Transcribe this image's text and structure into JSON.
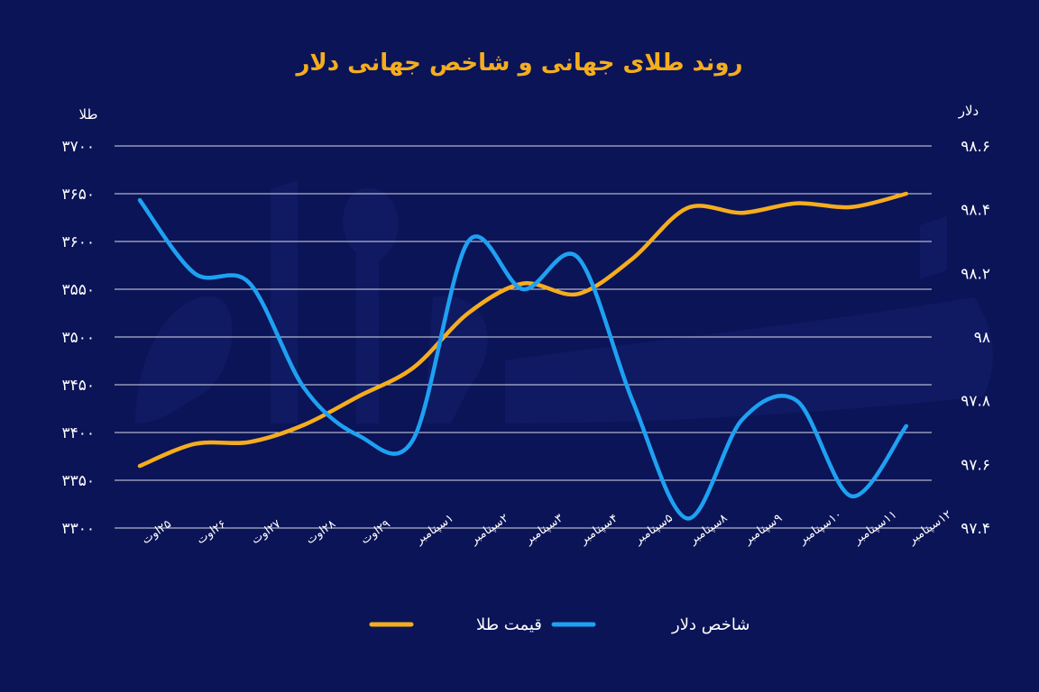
{
  "colors": {
    "background": "#0b1457",
    "gold": "#f5ad1e",
    "dollar": "#1ea1f2",
    "grid": "#ffffff",
    "title": "#f5ad1e",
    "text": "#ffffff"
  },
  "chart_data": {
    "type": "line",
    "title": "روند طلای جهانی و شاخص جهانی دلار",
    "left_axis_unit": "طلا",
    "right_axis_unit": "دلار",
    "categories": [
      "۲۵اوت",
      "۲۶اوت",
      "۲۷اوت",
      "۲۸اوت",
      "۲۹اوت",
      "۱سپتامبر",
      "۲سپتامبر",
      "۳سپتامبر",
      "۴سپتامبر",
      "۵سپتامبر",
      "۸سپتامبر",
      "۹سپتامبر",
      "۱۰سپتامبر",
      "۱۱سپتامبر",
      "۱۲سپتامبر"
    ],
    "left_axis": {
      "min": 3300,
      "max": 3700,
      "ticks": [
        3700,
        3650,
        3600,
        3550,
        3500,
        3450,
        3400,
        3350,
        3300
      ],
      "tick_labels": [
        "۳۷۰۰",
        "۳۶۵۰",
        "۳۶۰۰",
        "۳۵۵۰",
        "۳۵۰۰",
        "۳۴۵۰",
        "۳۴۰۰",
        "۳۳۵۰",
        "۳۳۰۰"
      ]
    },
    "right_axis": {
      "min": 97.4,
      "max": 98.6,
      "ticks": [
        98.6,
        98.4,
        98.2,
        98.0,
        97.8,
        97.6,
        97.4
      ],
      "tick_labels": [
        "۹۸.۶",
        "۹۸.۴",
        "۹۸.۲",
        "۹۸",
        "۹۷.۸",
        "۹۷.۶",
        "۹۷.۴"
      ]
    },
    "grid": true,
    "legend_position": "bottom",
    "series": [
      {
        "name": "قیمت طلا",
        "axis": "left",
        "color": "#f5ad1e",
        "values": [
          3365,
          3388,
          3390,
          3408,
          3438,
          3468,
          3525,
          3556,
          3545,
          3582,
          3635,
          3630,
          3640,
          3636,
          3650
        ]
      },
      {
        "name": "شاخص دلار",
        "axis": "right",
        "color": "#1ea1f2",
        "values": [
          98.43,
          98.2,
          98.17,
          97.84,
          97.69,
          97.68,
          98.3,
          98.15,
          98.25,
          97.8,
          97.43,
          97.74,
          97.8,
          97.5,
          97.72
        ]
      }
    ]
  }
}
